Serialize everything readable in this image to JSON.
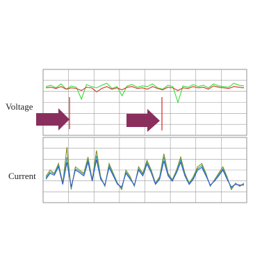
{
  "annotations": {
    "voltage": "Voltage",
    "current": "Current"
  },
  "chart_data": [
    {
      "type": "line",
      "ylim": [
        0,
        100
      ],
      "series": [
        {
          "color": "#33dd33",
          "values": [
            74,
            76,
            72,
            78,
            70,
            75,
            73,
            55,
            77,
            74,
            72,
            76,
            79,
            71,
            74,
            60,
            75,
            77,
            73,
            75,
            74,
            78,
            72,
            70,
            76,
            74,
            50,
            75,
            73,
            77,
            74,
            76,
            72,
            78,
            75,
            74,
            73,
            79,
            76,
            75
          ]
        },
        {
          "color": "#cc3322",
          "values": [
            72,
            73,
            71,
            74,
            70,
            72,
            71,
            68,
            73,
            72,
            66,
            71,
            74,
            70,
            72,
            69,
            73,
            74,
            71,
            72,
            70,
            74,
            71,
            69,
            73,
            72,
            68,
            72,
            71,
            74,
            72,
            73,
            70,
            75,
            73,
            72,
            71,
            74,
            73,
            72
          ]
        }
      ]
    },
    {
      "type": "line",
      "ylim": [
        0,
        100
      ],
      "series": [
        {
          "color": "#8a8a1e",
          "values": [
            40,
            50,
            45,
            60,
            30,
            85,
            20,
            55,
            50,
            45,
            70,
            35,
            80,
            40,
            25,
            60,
            45,
            30,
            20,
            50,
            40,
            25,
            55,
            45,
            65,
            50,
            30,
            40,
            75,
            45,
            35,
            50,
            70,
            45,
            30,
            40,
            55,
            60,
            45,
            25,
            35,
            45,
            55,
            40,
            20,
            30,
            25,
            30
          ]
        },
        {
          "color": "#2aa7a0",
          "values": [
            38,
            47,
            44,
            57,
            29,
            70,
            22,
            52,
            48,
            43,
            66,
            34,
            72,
            38,
            26,
            57,
            43,
            29,
            22,
            47,
            38,
            26,
            52,
            43,
            62,
            48,
            29,
            38,
            70,
            43,
            34,
            48,
            66,
            43,
            29,
            38,
            52,
            57,
            43,
            26,
            34,
            43,
            52,
            38,
            22,
            29,
            26,
            28
          ]
        },
        {
          "color": "#3355cc",
          "values": [
            36,
            45,
            42,
            55,
            28,
            62,
            24,
            50,
            46,
            41,
            62,
            33,
            66,
            36,
            27,
            54,
            41,
            28,
            24,
            45,
            36,
            27,
            50,
            41,
            59,
            46,
            28,
            36,
            64,
            41,
            33,
            46,
            62,
            41,
            28,
            36,
            50,
            54,
            41,
            27,
            33,
            41,
            50,
            36,
            24,
            28,
            27,
            27
          ]
        }
      ]
    }
  ]
}
